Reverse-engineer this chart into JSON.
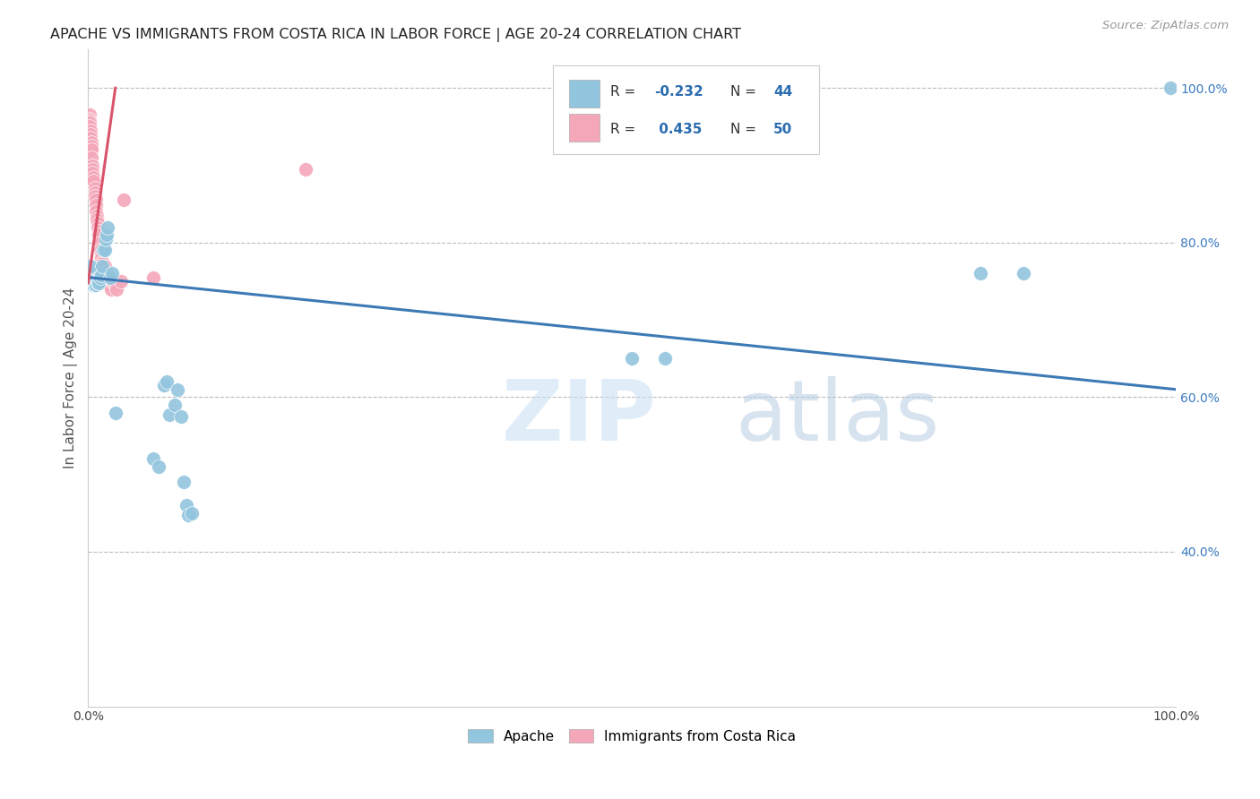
{
  "title": "APACHE VS IMMIGRANTS FROM COSTA RICA IN LABOR FORCE | AGE 20-24 CORRELATION CHART",
  "source": "Source: ZipAtlas.com",
  "ylabel": "In Labor Force | Age 20-24",
  "watermark_zip": "ZIP",
  "watermark_atlas": "atlas",
  "legend_r1": "-0.232",
  "legend_n1": "44",
  "legend_r2": "0.435",
  "legend_n2": "50",
  "legend_label1": "Apache",
  "legend_label2": "Immigrants from Costa Rica",
  "blue_color": "#92c5de",
  "pink_color": "#f4a7b9",
  "blue_line_color": "#3d7ab5",
  "pink_line_color": "#d9536a",
  "blue_r_color": "#2b6cb0",
  "pink_r_color": "#2b6cb0",
  "apache_x": [
    0.001,
    0.001,
    0.002,
    0.002,
    0.003,
    0.003,
    0.004,
    0.004,
    0.005,
    0.005,
    0.006,
    0.007,
    0.008,
    0.009,
    0.01,
    0.01,
    0.011,
    0.012,
    0.013,
    0.014,
    0.015,
    0.016,
    0.017,
    0.018,
    0.02,
    0.022,
    0.025,
    0.06,
    0.065,
    0.07,
    0.072,
    0.075,
    0.08,
    0.082,
    0.085,
    0.088,
    0.09,
    0.092,
    0.095,
    0.5,
    0.53,
    0.82,
    0.86,
    0.995
  ],
  "apache_y": [
    0.76,
    0.755,
    0.76,
    0.77,
    0.75,
    0.745,
    0.745,
    0.75,
    0.745,
    0.75,
    0.745,
    0.745,
    0.75,
    0.748,
    0.75,
    0.748,
    0.755,
    0.758,
    0.77,
    0.79,
    0.79,
    0.805,
    0.81,
    0.82,
    0.755,
    0.76,
    0.58,
    0.52,
    0.51,
    0.615,
    0.62,
    0.577,
    0.59,
    0.61,
    0.575,
    0.49,
    0.46,
    0.448,
    0.45,
    0.65,
    0.65,
    0.76,
    0.76,
    1.0
  ],
  "costa_rica_x": [
    0.001,
    0.001,
    0.001,
    0.001,
    0.001,
    0.002,
    0.002,
    0.002,
    0.003,
    0.003,
    0.003,
    0.003,
    0.004,
    0.004,
    0.004,
    0.005,
    0.005,
    0.006,
    0.006,
    0.006,
    0.007,
    0.007,
    0.007,
    0.008,
    0.008,
    0.009,
    0.009,
    0.01,
    0.01,
    0.011,
    0.011,
    0.012,
    0.012,
    0.013,
    0.014,
    0.015,
    0.016,
    0.017,
    0.018,
    0.019,
    0.02,
    0.021,
    0.022,
    0.024,
    0.025,
    0.026,
    0.03,
    0.033,
    0.06,
    0.2
  ],
  "costa_rica_y": [
    0.965,
    0.96,
    0.958,
    0.955,
    0.95,
    0.945,
    0.94,
    0.935,
    0.93,
    0.925,
    0.92,
    0.91,
    0.9,
    0.895,
    0.89,
    0.885,
    0.88,
    0.87,
    0.865,
    0.86,
    0.855,
    0.848,
    0.84,
    0.835,
    0.83,
    0.825,
    0.82,
    0.815,
    0.81,
    0.8,
    0.79,
    0.785,
    0.78,
    0.775,
    0.773,
    0.77,
    0.762,
    0.755,
    0.752,
    0.748,
    0.745,
    0.74,
    0.75,
    0.748,
    0.745,
    0.74,
    0.75,
    0.855,
    0.755,
    0.895
  ],
  "xlim": [
    0.0,
    1.0
  ],
  "ylim": [
    0.2,
    1.05
  ],
  "yticks": [
    1.0,
    0.8,
    0.6,
    0.4
  ],
  "ytick_labels": [
    "100.0%",
    "80.0%",
    "60.0%",
    "40.0%"
  ],
  "xtick_labels": [
    "0.0%",
    "100.0%"
  ]
}
